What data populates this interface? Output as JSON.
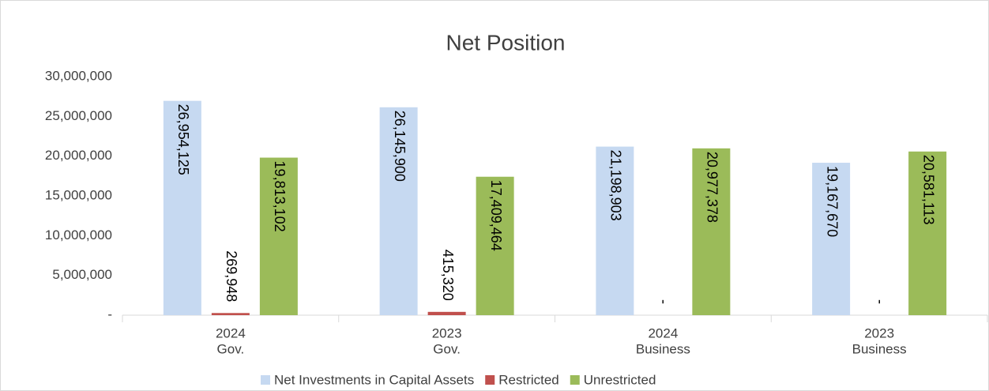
{
  "chart_data": {
    "type": "bar",
    "title": "Net Position",
    "categories": [
      [
        "2024",
        "Gov."
      ],
      [
        "2023",
        "Gov."
      ],
      [
        "2024",
        "Business"
      ],
      [
        "2023",
        "Business"
      ]
    ],
    "series": [
      {
        "name": "Net Investments in Capital Assets",
        "color": "#c6d9f1",
        "values": [
          26954125,
          26145900,
          21198903,
          19167670
        ],
        "value_labels": [
          "26,954,125",
          "26,145,900",
          "21,198,903",
          "19,167,670"
        ]
      },
      {
        "name": "Restricted",
        "color": "#c0504d",
        "values": [
          269948,
          415320,
          0,
          0
        ],
        "value_labels": [
          "269,948",
          "415,320",
          "-",
          "-"
        ]
      },
      {
        "name": "Unrestricted",
        "color": "#9bbb59",
        "values": [
          19813102,
          17409464,
          20977378,
          20581113
        ],
        "value_labels": [
          "19,813,102",
          "17,409,464",
          "20,977,378",
          "20,581,113"
        ]
      }
    ],
    "ylim": [
      0,
      30000000
    ],
    "yticks": [
      {
        "value": 0,
        "label": "-"
      },
      {
        "value": 5000000,
        "label": "5,000,000"
      },
      {
        "value": 10000000,
        "label": "10,000,000"
      },
      {
        "value": 15000000,
        "label": "15,000,000"
      },
      {
        "value": 20000000,
        "label": "20,000,000"
      },
      {
        "value": 25000000,
        "label": "25,000,000"
      },
      {
        "value": 30000000,
        "label": "30,000,000"
      }
    ],
    "grid": false,
    "legend": "bottom"
  }
}
